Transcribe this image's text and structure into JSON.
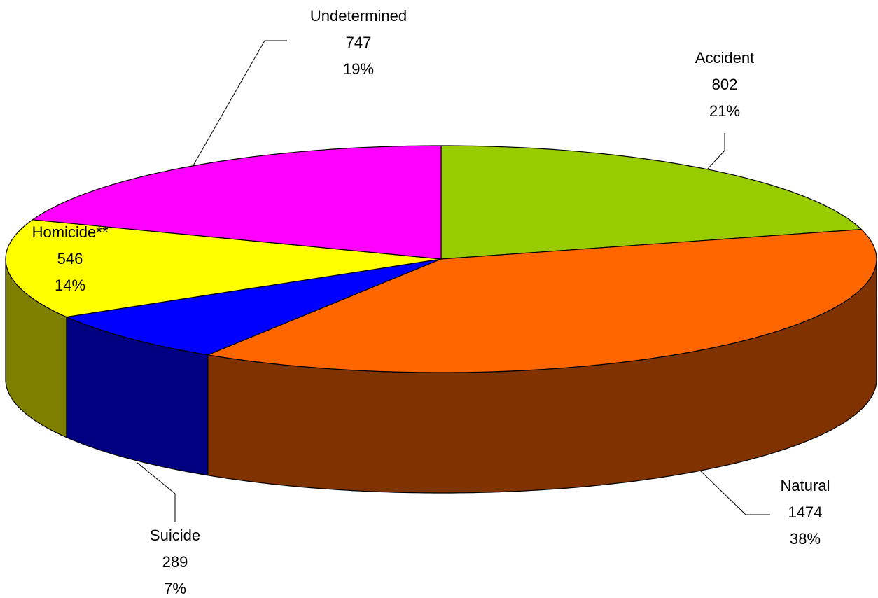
{
  "chart_data": {
    "type": "pie3d",
    "categories": [
      "Accident",
      "Natural",
      "Suicide",
      "Homicide**",
      "Undetermined"
    ],
    "values": [
      802,
      1474,
      289,
      546,
      747
    ],
    "percent_labels": [
      "21%",
      "38%",
      "7%",
      "14%",
      "19%"
    ],
    "colors": [
      "#99cc00",
      "#ff6600",
      "#0000ff",
      "#ffff00",
      "#ff00ff"
    ],
    "side_colors": [
      "#4d6600",
      "#803300",
      "#000080",
      "#808000",
      "#800080"
    ]
  }
}
